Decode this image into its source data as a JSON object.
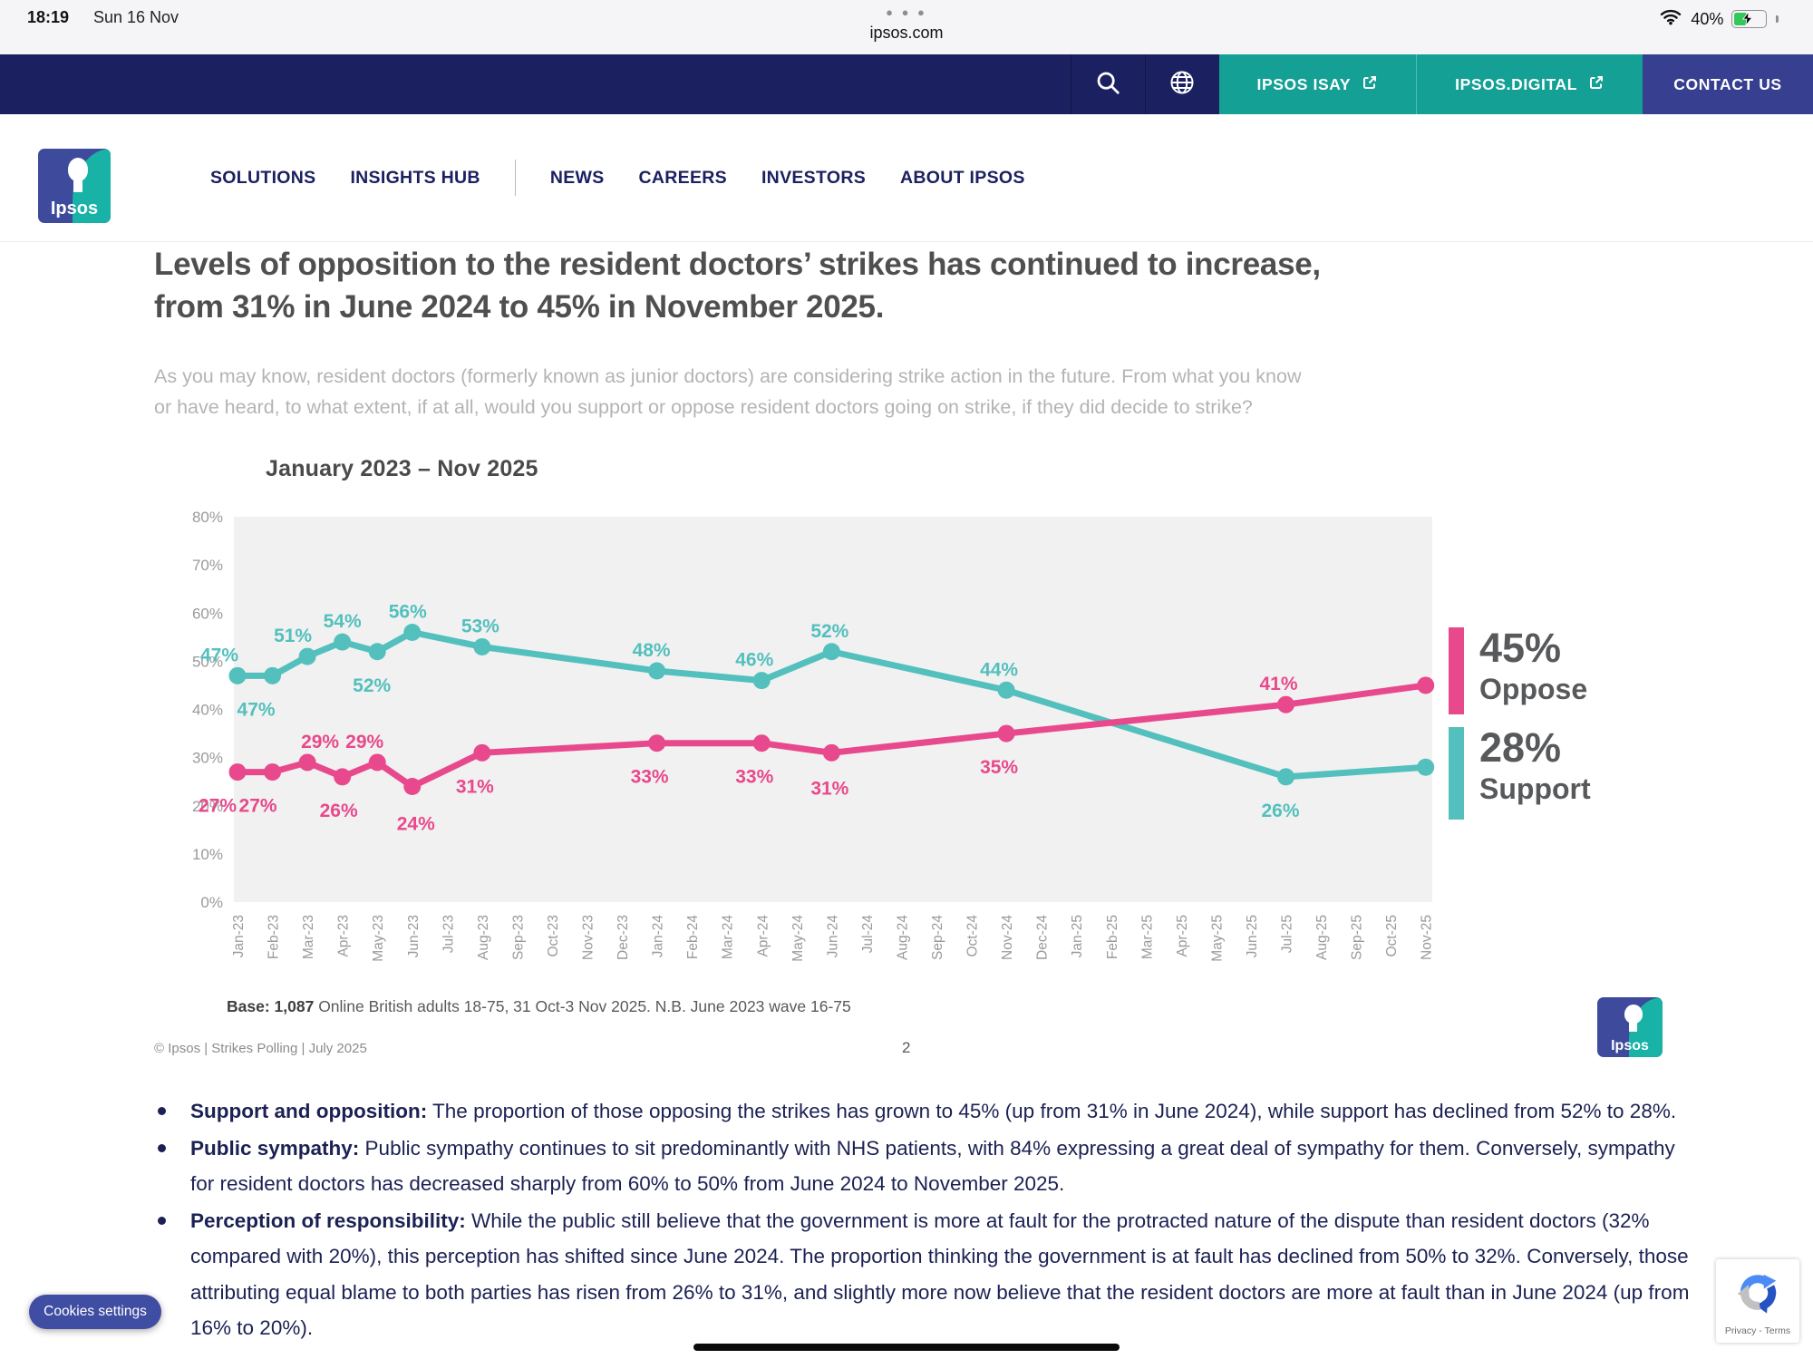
{
  "status_bar": {
    "time": "18:19",
    "date": "Sun 16 Nov",
    "tab_dots": "● ● ●",
    "url": "ipsos.com",
    "battery_percent": "40%"
  },
  "header": {
    "isay_label": "IPSOS ISAY",
    "digital_label": "IPSOS.DIGITAL",
    "contact_label": "CONTACT US"
  },
  "nav": {
    "logo_text": "Ipsos",
    "items": [
      "SOLUTIONS",
      "INSIGHTS HUB",
      "NEWS",
      "CAREERS",
      "INVESTORS",
      "ABOUT IPSOS"
    ]
  },
  "slide": {
    "headline_line1": "Levels of opposition to the resident doctors’ strikes has continued to increase,",
    "headline_line2": "from 31% in June 2024 to 45% in November 2025.",
    "question_line1": "As you may know, resident doctors (formerly known as junior doctors) are considering strike action in the future. From what you know",
    "question_line2": "or have heard, to what extent, if at all, would you support or oppose resident doctors going on strike, if they did decide to strike?",
    "legend": [
      {
        "value": "45%",
        "label": "Oppose",
        "color": "#e8498c"
      },
      {
        "value": "28%",
        "label": "Support",
        "color": "#53c0bd"
      }
    ],
    "base_bold": "Base: 1,087",
    "base_rest": " Online British adults 18-75, 31 Oct-3 Nov 2025. N.B. June 2023 wave 16-75",
    "copyright": "© Ipsos | Strikes Polling | July 2025",
    "page_number": "2",
    "logo_text": "Ipsos"
  },
  "chart_data": {
    "type": "line",
    "title": "January 2023 – Nov 2025",
    "xlabel": "",
    "ylabel": "",
    "ylim": [
      0,
      80
    ],
    "yticks": [
      0,
      10,
      20,
      30,
      40,
      50,
      60,
      70,
      80
    ],
    "grid": false,
    "legend_position": "right",
    "x_months": [
      "Jan-23",
      "Feb-23",
      "Mar-23",
      "Apr-23",
      "May-23",
      "Jun-23",
      "Jul-23",
      "Aug-23",
      "Sep-23",
      "Oct-23",
      "Nov-23",
      "Dec-23",
      "Jan-24",
      "Feb-24",
      "Mar-24",
      "Apr-24",
      "May-24",
      "Jun-24",
      "Jul-24",
      "Aug-24",
      "Sep-24",
      "Oct-24",
      "Nov-24",
      "Dec-24",
      "Jan-25",
      "Feb-25",
      "Mar-25",
      "Apr-25",
      "May-25",
      "Jun-25",
      "Jul-25",
      "Aug-25",
      "Sep-25",
      "Oct-25",
      "Nov-25"
    ],
    "series": [
      {
        "name": "Support",
        "color": "#53c0bd",
        "points": [
          {
            "month": "Jan-23",
            "mi": 0,
            "v": 47,
            "lab": "a",
            "dx": -20
          },
          {
            "month": "Feb-23",
            "mi": 1,
            "v": 47,
            "lab": "b",
            "dx": -18
          },
          {
            "month": "Mar-23",
            "mi": 2,
            "v": 51,
            "lab": "a",
            "dx": -16
          },
          {
            "month": "Apr-23",
            "mi": 3,
            "v": 54,
            "lab": "a"
          },
          {
            "month": "May-23",
            "mi": 4,
            "v": 52,
            "lab": "b",
            "dx": -6
          },
          {
            "month": "Jun-23",
            "mi": 5,
            "v": 56,
            "lab": "a",
            "dx": -5
          },
          {
            "month": "Aug-23",
            "mi": 7,
            "v": 53,
            "lab": "a",
            "dx": -2
          },
          {
            "month": "Jan-24",
            "mi": 12,
            "v": 48,
            "lab": "a",
            "dx": -6
          },
          {
            "month": "Apr-24",
            "mi": 15,
            "v": 46,
            "lab": "a",
            "dx": -8
          },
          {
            "month": "Jun-24",
            "mi": 17,
            "v": 52,
            "lab": "a",
            "dx": -2
          },
          {
            "month": "Nov-24",
            "mi": 22,
            "v": 44,
            "lab": "a",
            "dx": -8
          },
          {
            "month": "Jul-25",
            "mi": 30,
            "v": 26,
            "lab": "b",
            "dx": -6
          },
          {
            "month": "Nov-25",
            "mi": 34,
            "v": 28
          }
        ]
      },
      {
        "name": "Oppose",
        "color": "#e8498c",
        "points": [
          {
            "month": "Jan-23",
            "mi": 0,
            "v": 27,
            "lab": "b",
            "dx": -22
          },
          {
            "month": "Feb-23",
            "mi": 1,
            "v": 27,
            "lab": "b",
            "dx": -16
          },
          {
            "month": "Mar-23",
            "mi": 2,
            "v": 29,
            "lab": "a",
            "dx": 14
          },
          {
            "month": "Apr-23",
            "mi": 3,
            "v": 26,
            "lab": "b",
            "dx": -4
          },
          {
            "month": "May-23",
            "mi": 4,
            "v": 29,
            "lab": "a",
            "dx": -14
          },
          {
            "month": "Jun-23",
            "mi": 5,
            "v": 24,
            "lab": "b",
            "dx": 4,
            "dy": 4
          },
          {
            "month": "Aug-23",
            "mi": 7,
            "v": 31,
            "lab": "b",
            "dx": -8
          },
          {
            "month": "Jan-24",
            "mi": 12,
            "v": 33,
            "lab": "b",
            "dx": -8
          },
          {
            "month": "Apr-24",
            "mi": 15,
            "v": 33,
            "lab": "b",
            "dx": -8
          },
          {
            "month": "Jun-24",
            "mi": 17,
            "v": 31,
            "lab": "b",
            "dx": -2,
            "dy": 2
          },
          {
            "month": "Nov-24",
            "mi": 22,
            "v": 35,
            "lab": "b",
            "dx": -8
          },
          {
            "month": "Jul-25",
            "mi": 30,
            "v": 41,
            "lab": "a",
            "dx": -8
          },
          {
            "month": "Nov-25",
            "mi": 34,
            "v": 45
          }
        ]
      }
    ],
    "end_labels": [
      {
        "value": "45%",
        "label": "Oppose"
      },
      {
        "value": "28%",
        "label": "Support"
      }
    ]
  },
  "bullets": [
    {
      "lead": "Support and opposition:",
      "text": " The proportion of those opposing the strikes has grown to 45% (up from 31% in June 2024), while support has declined from 52% to 28%."
    },
    {
      "lead": "Public sympathy:",
      "text": " Public sympathy continues to sit predominantly with NHS patients, with 84% expressing a great deal of sympathy for them. Conversely, sympathy for resident doctors has decreased sharply from 60% to 50% from June 2024 to November 2025."
    },
    {
      "lead": "Perception of responsibility:",
      "text": " While the public still believe that the government is more at fault for the protracted nature of the dispute than resident doctors (32% compared with 20%), this perception has shifted since June 2024. The proportion thinking the government is at fault has declined from 50% to 32%. Conversely, those attributing equal blame to both parties has risen from 26% to 31%, and slightly more now believe that the resident doctors are more at fault than in June 2024 (up from 16% to 20%)."
    }
  ],
  "cookies_button_label": "Cookies settings",
  "recaptcha_label": "Privacy - Terms"
}
